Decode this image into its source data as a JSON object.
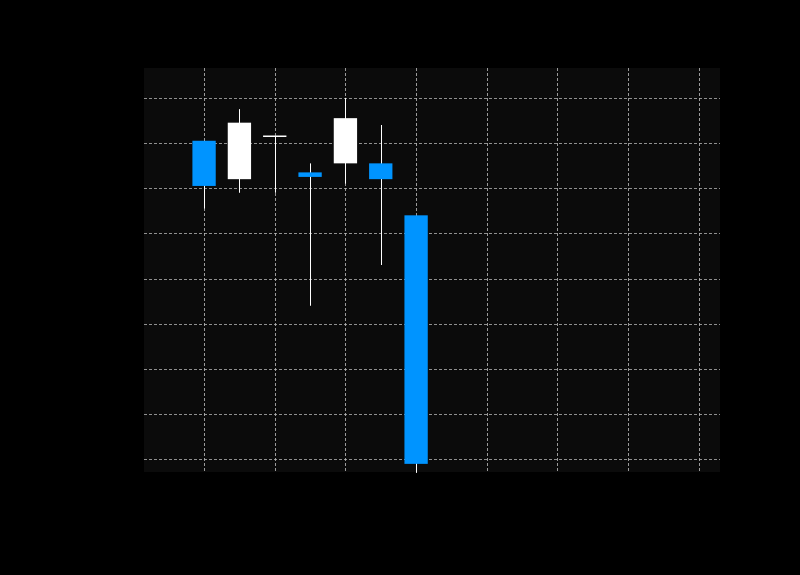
{
  "chart_data": {
    "type": "candlestick",
    "title": "",
    "xlabel": "",
    "ylabel": "",
    "xlim": [
      0.15,
      8.3
    ],
    "ylim": [
      -0.28,
      8.66
    ],
    "grid": true,
    "x_gridlines": [
      1,
      2,
      3,
      4,
      5,
      6,
      7,
      8
    ],
    "y_gridlines": [
      0,
      1,
      2,
      3,
      4,
      5,
      6,
      7,
      8
    ],
    "candles": [
      {
        "x": 1.0,
        "open": 7.05,
        "high": 7.05,
        "low": 5.55,
        "close": 6.05
      },
      {
        "x": 1.5,
        "open": 6.2,
        "high": 7.75,
        "low": 5.9,
        "close": 7.45
      },
      {
        "x": 2.0,
        "open": 7.15,
        "high": 7.15,
        "low": 5.9,
        "close": 7.15
      },
      {
        "x": 2.5,
        "open": 6.35,
        "high": 6.55,
        "low": 3.4,
        "close": 6.25
      },
      {
        "x": 3.0,
        "open": 6.55,
        "high": 8.0,
        "low": 6.1,
        "close": 7.55
      },
      {
        "x": 3.5,
        "open": 6.55,
        "high": 7.4,
        "low": 4.3,
        "close": 6.2
      },
      {
        "x": 4.0,
        "open": 5.4,
        "high": 5.4,
        "low": -0.3,
        "close": -0.1
      }
    ],
    "colors": {
      "background": "#000000",
      "plot_background": "#0b0b0b",
      "grid": "#bdbdbd",
      "up": "#ffffff",
      "down": "#0094ff",
      "wick": "#ffffff"
    }
  }
}
